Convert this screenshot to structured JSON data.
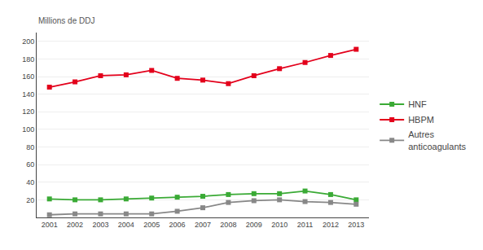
{
  "chart_data": {
    "type": "line",
    "ylabel": "Millions de DDJ",
    "x": [
      2001,
      2002,
      2003,
      2004,
      2005,
      2006,
      2007,
      2008,
      2009,
      2010,
      2011,
      2012,
      2013
    ],
    "series": [
      {
        "name": "HNF",
        "color": "#3aaa35",
        "marker": "square",
        "values": [
          21,
          20,
          20,
          21,
          22,
          23,
          24,
          26,
          27,
          27,
          30,
          26,
          20
        ]
      },
      {
        "name": "HBPM",
        "color": "#e3001b",
        "marker": "square",
        "values": [
          148,
          154,
          161,
          162,
          167,
          158,
          156,
          152,
          161,
          169,
          176,
          184,
          191
        ]
      },
      {
        "name": "Autres\nanticoagulants",
        "color": "#888888",
        "marker": "square",
        "values": [
          3,
          4,
          4,
          4,
          4,
          7,
          11,
          17,
          19,
          20,
          18,
          17,
          15
        ]
      }
    ],
    "xlim": [
      2000.5,
      2013.5
    ],
    "xticks": [
      2001,
      2002,
      2003,
      2004,
      2005,
      2006,
      2007,
      2008,
      2009,
      2010,
      2011,
      2012,
      2013
    ],
    "ylim": [
      0,
      210
    ],
    "yticks": [
      20,
      40,
      60,
      80,
      100,
      120,
      140,
      160,
      180,
      200
    ],
    "grid": "y",
    "legend": "right"
  }
}
